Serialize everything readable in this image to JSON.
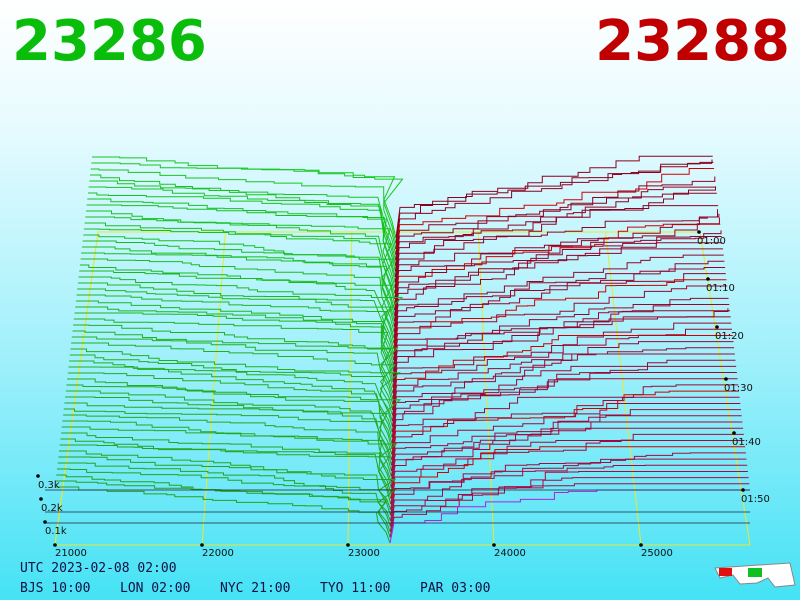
{
  "header": {
    "bid": "23286",
    "ask": "23288"
  },
  "axes": {
    "depth_labels": [
      "0.3k",
      "0.2k",
      "0.1k"
    ],
    "price_labels": [
      "21000",
      "22000",
      "23000",
      "24000",
      "25000"
    ],
    "time_labels": [
      "01:00",
      "01:10",
      "01:20",
      "01:30",
      "01:40",
      "01:50"
    ]
  },
  "footer": {
    "utc": "UTC 2023-02-08 02:00",
    "clocks": [
      "BJS 10:00",
      "LON 02:00",
      "NYC 21:00",
      "TYO 11:00",
      "PAR 03:00"
    ]
  }
}
